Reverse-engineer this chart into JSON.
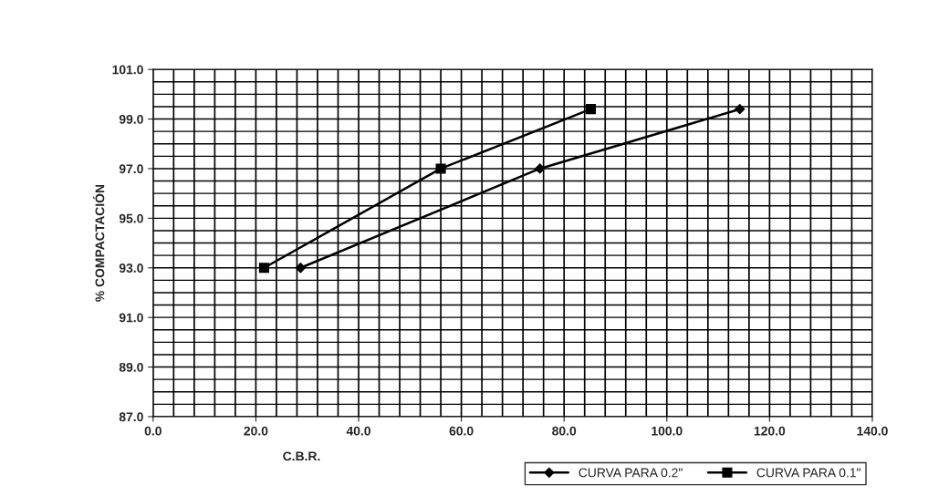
{
  "chart_data": {
    "type": "line",
    "xlabel": "C.B.R.",
    "ylabel": "% COMPACTACIÓN",
    "xlim": [
      0,
      140
    ],
    "xticks": [
      {
        "value": 0,
        "label": "0.0"
      },
      {
        "value": 20,
        "label": "20.0"
      },
      {
        "value": 40,
        "label": "40.0"
      },
      {
        "value": 60,
        "label": "60.0"
      },
      {
        "value": 80,
        "label": "80.0"
      },
      {
        "value": 100,
        "label": "100.0"
      },
      {
        "value": 120,
        "label": "120.0"
      },
      {
        "value": 140,
        "label": "140.0"
      }
    ],
    "ylim": [
      87,
      101
    ],
    "yticks": [
      {
        "value": 87,
        "label": "87.0"
      },
      {
        "value": 89,
        "label": "89.0"
      },
      {
        "value": 91,
        "label": "91.0"
      },
      {
        "value": 93,
        "label": "93.0"
      },
      {
        "value": 95,
        "label": "95.0"
      },
      {
        "value": 97,
        "label": "97.0"
      },
      {
        "value": 99,
        "label": "99.0"
      },
      {
        "value": 101,
        "label": "101.0"
      }
    ],
    "grid": true,
    "legend": "bottom right",
    "series": [
      {
        "name": "CURVA PARA 0.2\"",
        "color": "#000000",
        "marker": "diamond",
        "x": [
          28.7,
          75.3,
          114.2
        ],
        "values": [
          93.0,
          97.0,
          99.4
        ]
      },
      {
        "name": "CURVA PARA 0.1\"",
        "color": "#000000",
        "marker": "square",
        "x": [
          21.6,
          56.0,
          85.2
        ],
        "values": [
          93.0,
          97.0,
          99.4
        ]
      }
    ]
  }
}
